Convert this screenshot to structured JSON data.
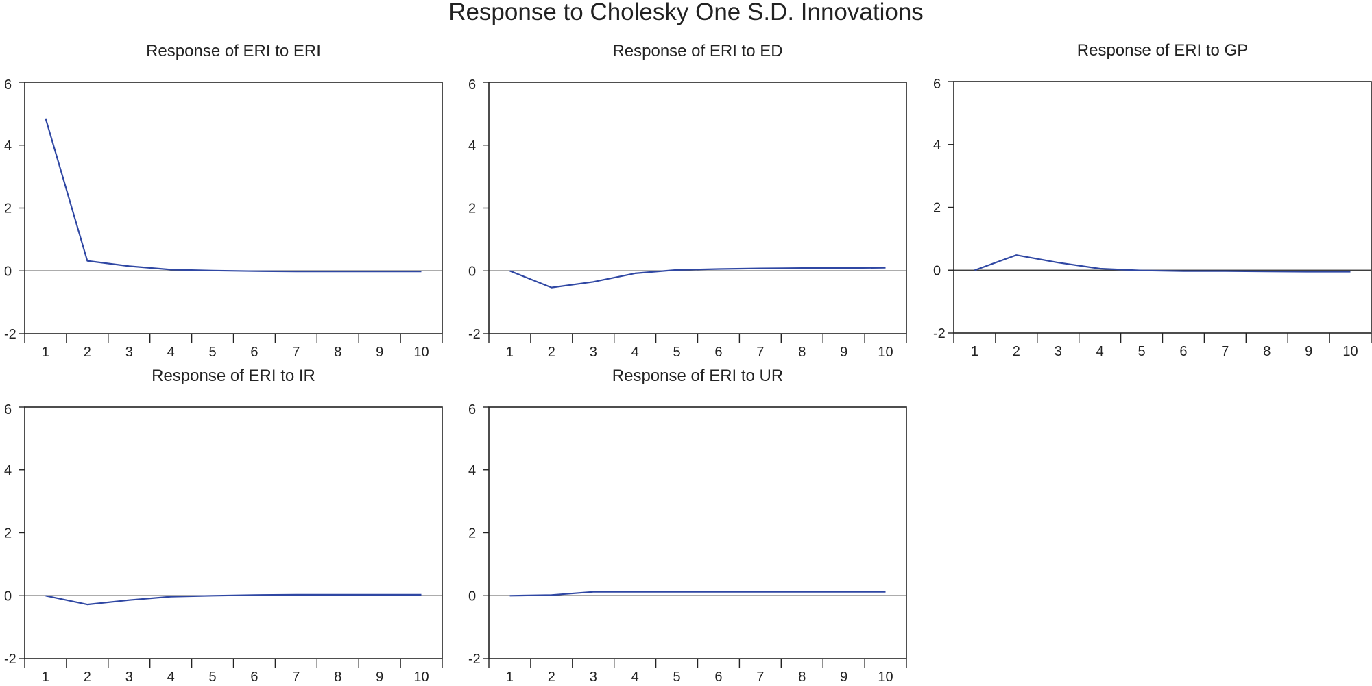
{
  "title": "Response to Cholesky One S.D. Innovations",
  "chart_data": [
    {
      "type": "line",
      "title": "Response of ERI to ERI",
      "x": [
        1,
        2,
        3,
        4,
        5,
        6,
        7,
        8,
        9,
        10
      ],
      "series": [
        {
          "values": [
            4.85,
            0.32,
            0.15,
            0.04,
            0.01,
            -0.01,
            -0.02,
            -0.02,
            -0.02,
            -0.02
          ]
        }
      ],
      "xlim": [
        0.5,
        10.5
      ],
      "ylim": [
        -2,
        6
      ],
      "yticks": [
        -2,
        0,
        2,
        4,
        6
      ],
      "xticks": [
        1,
        2,
        3,
        4,
        5,
        6,
        7,
        8,
        9,
        10
      ],
      "zero_line": true,
      "grid": false,
      "line_color": "#2f47a3"
    },
    {
      "type": "line",
      "title": "Response of ERI to ED",
      "x": [
        1,
        2,
        3,
        4,
        5,
        6,
        7,
        8,
        9,
        10
      ],
      "series": [
        {
          "values": [
            0.0,
            -0.53,
            -0.35,
            -0.08,
            0.03,
            0.06,
            0.08,
            0.09,
            0.09,
            0.1
          ]
        }
      ],
      "xlim": [
        0.5,
        10.5
      ],
      "ylim": [
        -2,
        6
      ],
      "yticks": [
        -2,
        0,
        2,
        4,
        6
      ],
      "xticks": [
        1,
        2,
        3,
        4,
        5,
        6,
        7,
        8,
        9,
        10
      ],
      "zero_line": true,
      "grid": false,
      "line_color": "#2f47a3"
    },
    {
      "type": "line",
      "title": "Response of ERI to GP",
      "x": [
        1,
        2,
        3,
        4,
        5,
        6,
        7,
        8,
        9,
        10
      ],
      "series": [
        {
          "values": [
            0.0,
            0.48,
            0.24,
            0.05,
            -0.01,
            -0.03,
            -0.03,
            -0.04,
            -0.05,
            -0.05
          ]
        }
      ],
      "xlim": [
        0.5,
        10.5
      ],
      "ylim": [
        -2,
        6
      ],
      "yticks": [
        -2,
        0,
        2,
        4,
        6
      ],
      "xticks": [
        1,
        2,
        3,
        4,
        5,
        6,
        7,
        8,
        9,
        10
      ],
      "zero_line": true,
      "grid": false,
      "line_color": "#2f47a3"
    },
    {
      "type": "line",
      "title": "Response of ERI to IR",
      "x": [
        1,
        2,
        3,
        4,
        5,
        6,
        7,
        8,
        9,
        10
      ],
      "series": [
        {
          "values": [
            0.0,
            -0.28,
            -0.14,
            -0.03,
            0.0,
            0.02,
            0.03,
            0.03,
            0.03,
            0.03
          ]
        }
      ],
      "xlim": [
        0.5,
        10.5
      ],
      "ylim": [
        -2,
        6
      ],
      "yticks": [
        -2,
        0,
        2,
        4,
        6
      ],
      "xticks": [
        1,
        2,
        3,
        4,
        5,
        6,
        7,
        8,
        9,
        10
      ],
      "zero_line": true,
      "grid": false,
      "line_color": "#2f47a3"
    },
    {
      "type": "line",
      "title": "Response of ERI to UR",
      "x": [
        1,
        2,
        3,
        4,
        5,
        6,
        7,
        8,
        9,
        10
      ],
      "series": [
        {
          "values": [
            0.0,
            0.02,
            0.12,
            0.12,
            0.12,
            0.12,
            0.12,
            0.12,
            0.12,
            0.12
          ]
        }
      ],
      "xlim": [
        0.5,
        10.5
      ],
      "ylim": [
        -2,
        6
      ],
      "yticks": [
        -2,
        0,
        2,
        4,
        6
      ],
      "xticks": [
        1,
        2,
        3,
        4,
        5,
        6,
        7,
        8,
        9,
        10
      ],
      "zero_line": true,
      "grid": false,
      "line_color": "#2f47a3"
    }
  ]
}
